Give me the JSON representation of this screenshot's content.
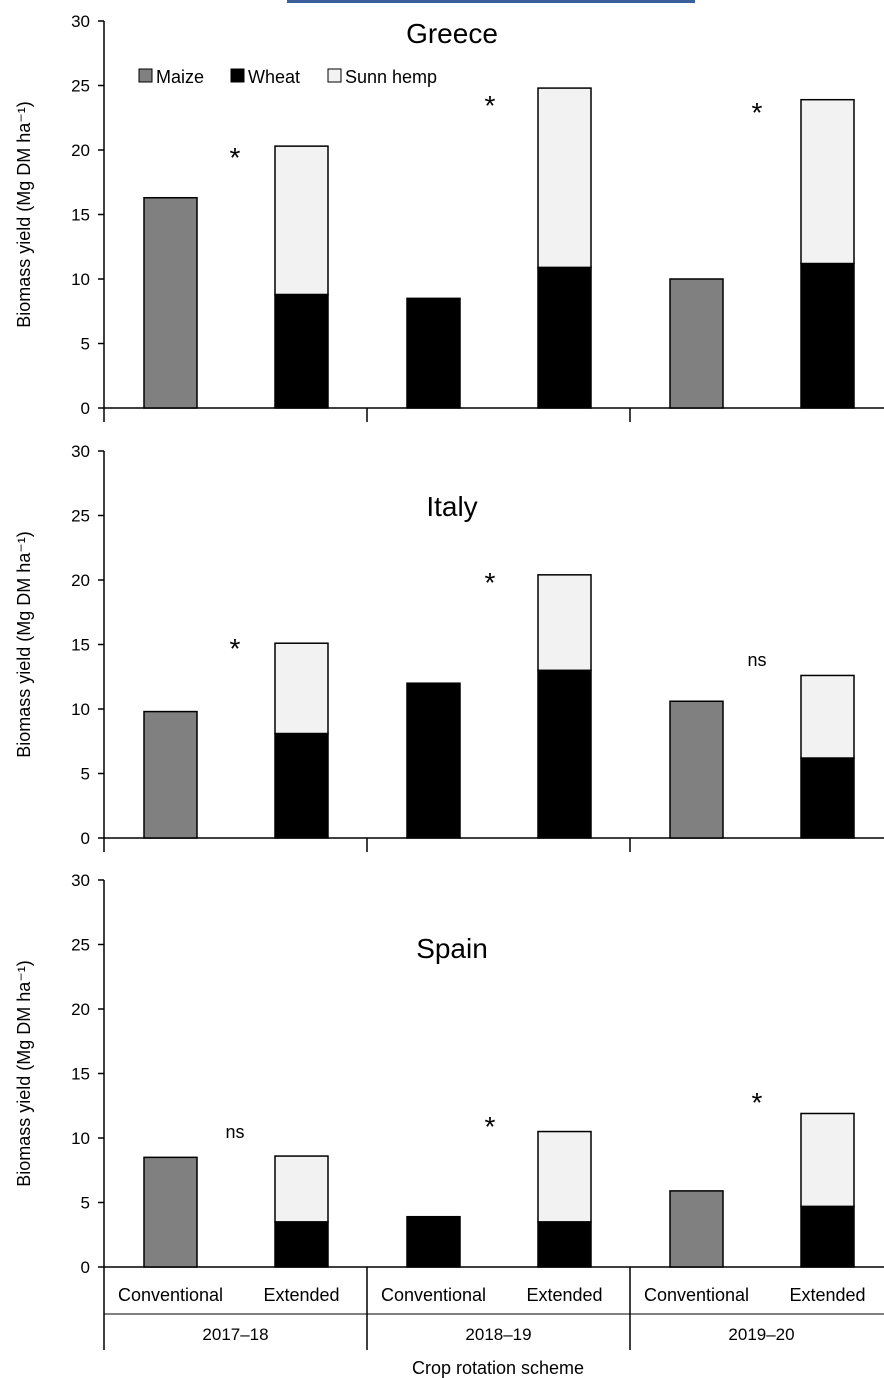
{
  "chart_data": {
    "type": "bar",
    "stacked": true,
    "xlabel": "Crop rotation scheme",
    "groups": [
      "2017–18",
      "2018–19",
      "2019–20"
    ],
    "categories": [
      "Conventional",
      "Extended"
    ],
    "legend": [
      {
        "name": "Maize",
        "color": "#808080"
      },
      {
        "name": "Wheat",
        "color": "#000000"
      },
      {
        "name": "Sunn hemp",
        "color": "#f2f2f2"
      }
    ],
    "ylim": [
      0,
      30
    ],
    "yticks": [
      "0",
      "5",
      "10",
      "15",
      "20",
      "25",
      "30"
    ],
    "panels": [
      {
        "title": "Greece",
        "ylabel": "Biomass yield (Mg DM ha⁻¹)",
        "bars": [
          {
            "group": "2017–18",
            "scheme": "Conventional",
            "maize": 16.3,
            "wheat": 0,
            "sunn_hemp": 0
          },
          {
            "group": "2017–18",
            "scheme": "Extended",
            "maize": 0,
            "wheat": 8.8,
            "sunn_hemp": 11.5
          },
          {
            "group": "2018–19",
            "scheme": "Conventional",
            "maize": 0,
            "wheat": 8.5,
            "sunn_hemp": 0
          },
          {
            "group": "2018–19",
            "scheme": "Extended",
            "maize": 0,
            "wheat": 10.9,
            "sunn_hemp": 13.9
          },
          {
            "group": "2019–20",
            "scheme": "Conventional",
            "maize": 10.0,
            "wheat": 0,
            "sunn_hemp": 0
          },
          {
            "group": "2019–20",
            "scheme": "Extended",
            "maize": 0,
            "wheat": 11.2,
            "sunn_hemp": 12.7
          }
        ],
        "annotations": [
          "*",
          "*",
          "*"
        ]
      },
      {
        "title": "Italy",
        "ylabel": "Biomass yield (Mg DM ha⁻¹)",
        "bars": [
          {
            "group": "2017–18",
            "scheme": "Conventional",
            "maize": 9.8,
            "wheat": 0,
            "sunn_hemp": 0
          },
          {
            "group": "2017–18",
            "scheme": "Extended",
            "maize": 0,
            "wheat": 8.1,
            "sunn_hemp": 7.0
          },
          {
            "group": "2018–19",
            "scheme": "Conventional",
            "maize": 0,
            "wheat": 12.0,
            "sunn_hemp": 0
          },
          {
            "group": "2018–19",
            "scheme": "Extended",
            "maize": 0,
            "wheat": 13.0,
            "sunn_hemp": 7.4
          },
          {
            "group": "2019–20",
            "scheme": "Conventional",
            "maize": 10.6,
            "wheat": 0,
            "sunn_hemp": 0
          },
          {
            "group": "2019–20",
            "scheme": "Extended",
            "maize": 0,
            "wheat": 6.2,
            "sunn_hemp": 6.4
          }
        ],
        "annotations": [
          "*",
          "*",
          "ns"
        ]
      },
      {
        "title": "Spain",
        "ylabel": "Biomass yield (Mg DM ha⁻¹)",
        "bars": [
          {
            "group": "2017–18",
            "scheme": "Conventional",
            "maize": 8.5,
            "wheat": 0,
            "sunn_hemp": 0
          },
          {
            "group": "2017–18",
            "scheme": "Extended",
            "maize": 0,
            "wheat": 3.5,
            "sunn_hemp": 5.1
          },
          {
            "group": "2018–19",
            "scheme": "Conventional",
            "maize": 0,
            "wheat": 3.9,
            "sunn_hemp": 0
          },
          {
            "group": "2018–19",
            "scheme": "Extended",
            "maize": 0,
            "wheat": 3.5,
            "sunn_hemp": 7.0
          },
          {
            "group": "2019–20",
            "scheme": "Conventional",
            "maize": 5.9,
            "wheat": 0,
            "sunn_hemp": 0
          },
          {
            "group": "2019–20",
            "scheme": "Extended",
            "maize": 0,
            "wheat": 4.7,
            "sunn_hemp": 7.2
          }
        ],
        "annotations": [
          "ns",
          "*",
          "*"
        ]
      }
    ]
  }
}
